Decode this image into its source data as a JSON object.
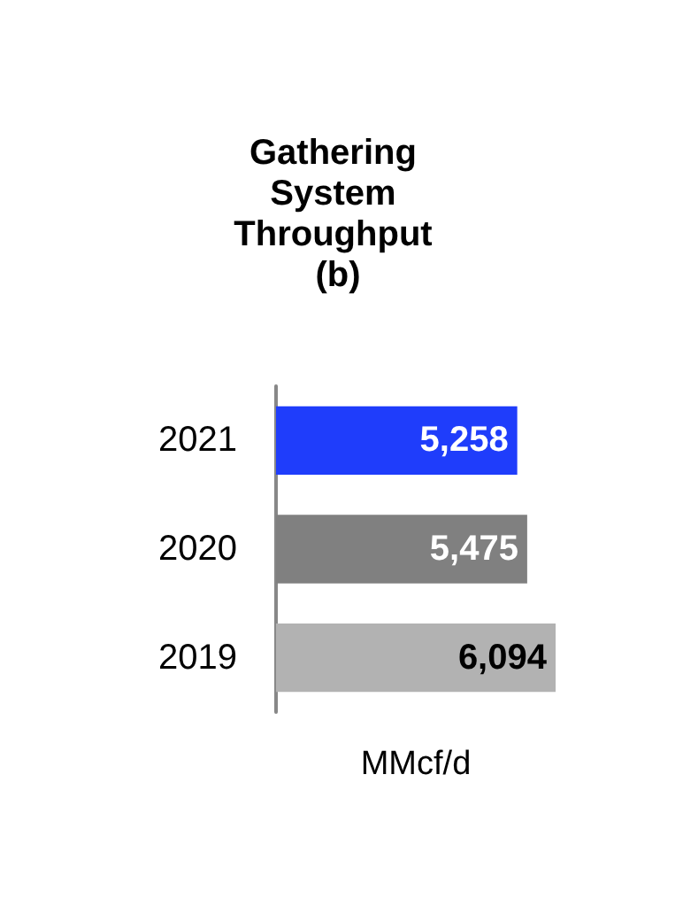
{
  "chart_data": {
    "type": "bar",
    "orientation": "horizontal",
    "title": "Gathering System Throughput (b)",
    "xlabel": "MMcf/d",
    "categories": [
      "2021",
      "2020",
      "2019"
    ],
    "values": [
      5258,
      5475,
      6094
    ],
    "colors": [
      "#1f3dfb",
      "#808080",
      "#b2b2b2"
    ],
    "value_labels": [
      "5,258",
      "5,475",
      "6,094"
    ]
  }
}
